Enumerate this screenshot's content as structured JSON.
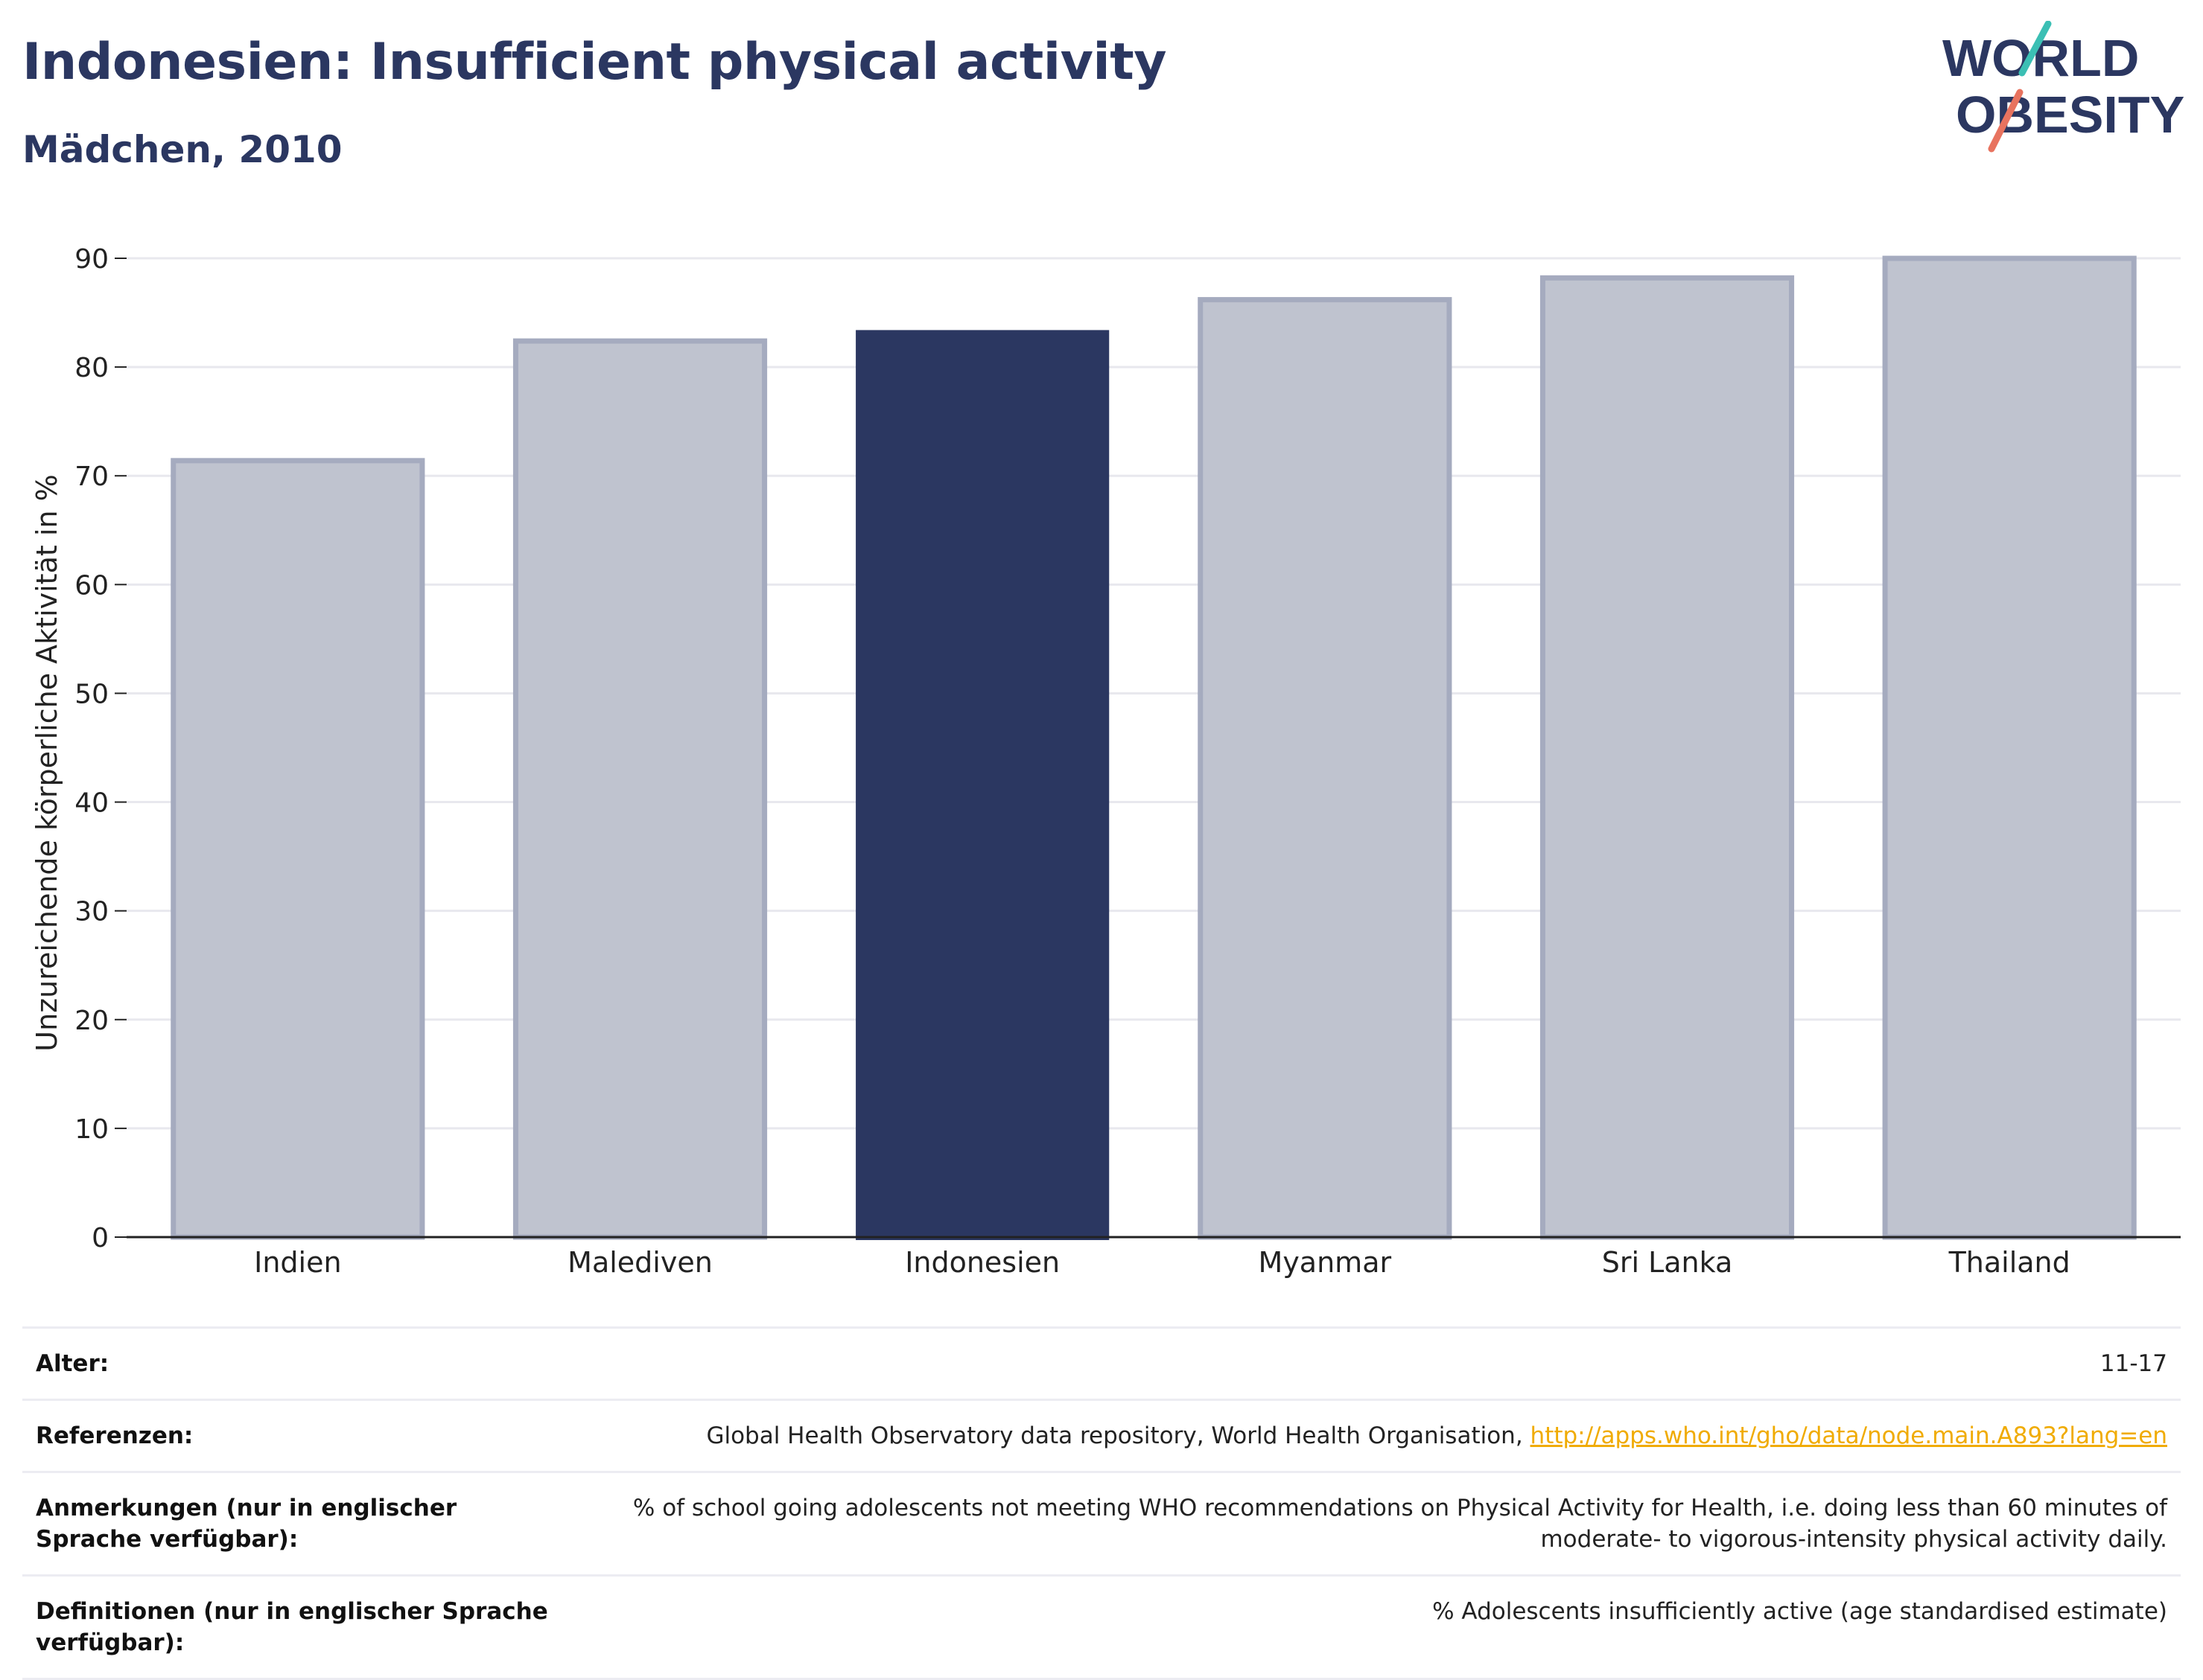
{
  "header": {
    "title": "Indonesien: Insufficient physical activity",
    "subtitle": "Mädchen, 2010"
  },
  "logo": {
    "line1": "WORLD",
    "line2": "OBESITY",
    "accent_teal": "#3bbfb4",
    "accent_coral": "#e8735f",
    "text_color": "#2b3761"
  },
  "colors": {
    "highlight_bar": "#2b3761",
    "other_bar_fill": "#bfc3cf",
    "other_bar_stroke": "#a5abbf",
    "grid": "#e8e8ee",
    "axis": "#222222"
  },
  "chart_data": {
    "type": "bar",
    "title": "Indonesien: Insufficient physical activity",
    "subtitle": "Mädchen, 2010",
    "categories": [
      "Indien",
      "Malediven",
      "Indonesien",
      "Myanmar",
      "Sri Lanka",
      "Thailand"
    ],
    "values": [
      71.6,
      82.6,
      83.4,
      86.4,
      88.4,
      90.2
    ],
    "highlight": "Indonesien",
    "xlabel": "",
    "ylabel": "Unzureichende körperliche Aktivität in %",
    "ylim": [
      0,
      90
    ],
    "yticks": [
      0,
      10,
      20,
      30,
      40,
      50,
      60,
      70,
      80,
      90
    ],
    "grid": true
  },
  "info": {
    "rows": [
      {
        "label": "Alter:",
        "value": "11-17"
      },
      {
        "label": "Referenzen:",
        "value": "Global Health Observatory data repository, World Health Organisation, ",
        "link": "http://apps.who.int/gho/data/node.main.A893?lang=en"
      },
      {
        "label": "Anmerkungen (nur in englischer Sprache verfügbar):",
        "value": "% of school going adolescents not meeting WHO recommendations on Physical Activity for Health, i.e. doing less than 60 minutes of moderate- to vigorous-intensity physical activity daily."
      },
      {
        "label": "Definitionen (nur in englischer Sprache verfügbar):",
        "value": "% Adolescents insufficiently active (age standardised estimate)"
      }
    ]
  }
}
